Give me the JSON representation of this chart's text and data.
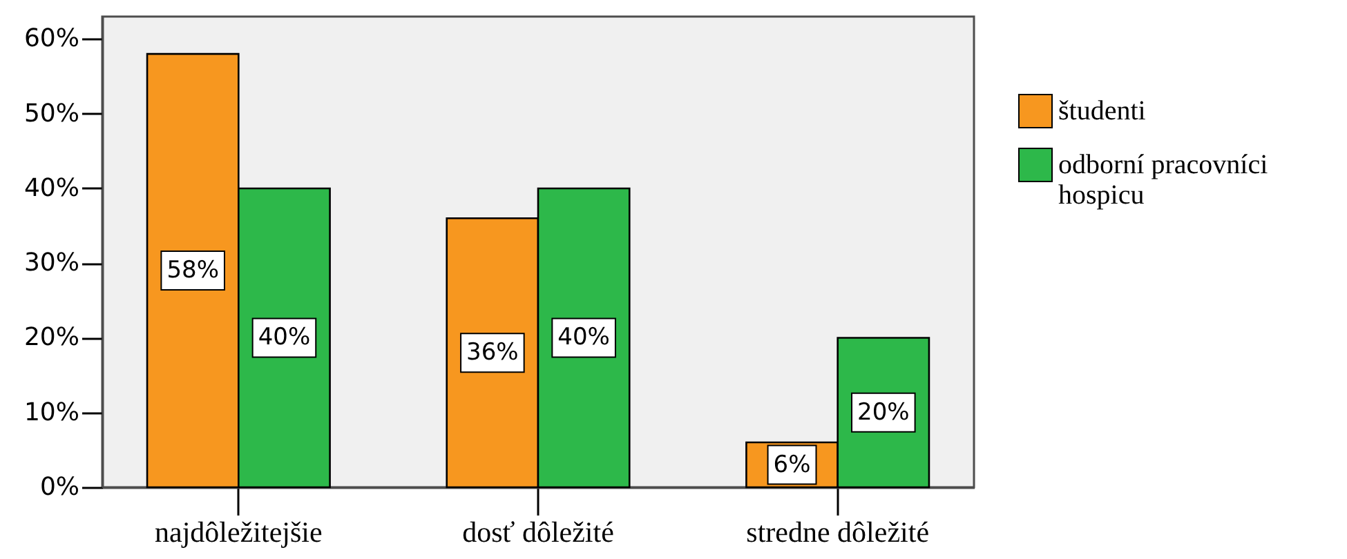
{
  "chart_data": {
    "type": "bar",
    "categories": [
      "najdôležitejšie",
      "dosť dôležité",
      "stredne dôležité"
    ],
    "series": [
      {
        "name": "študenti",
        "color": "#f7971f",
        "values": [
          58,
          36,
          6
        ],
        "value_labels": [
          "58%",
          "36%",
          "6%"
        ]
      },
      {
        "name": "odborní pracovníci hospicu",
        "color": "#2db84a",
        "values": [
          40,
          40,
          20
        ],
        "value_labels": [
          "40%",
          "40%",
          "20%"
        ]
      }
    ],
    "ylim": [
      0,
      63
    ],
    "yticks": [
      {
        "value": 0,
        "label": "0%"
      },
      {
        "value": 10,
        "label": "10%"
      },
      {
        "value": 20,
        "label": "20%"
      },
      {
        "value": 30,
        "label": "30%"
      },
      {
        "value": 40,
        "label": "40%"
      },
      {
        "value": 50,
        "label": "50%"
      },
      {
        "value": 60,
        "label": "60%"
      }
    ],
    "grid": false,
    "legend": "right"
  }
}
